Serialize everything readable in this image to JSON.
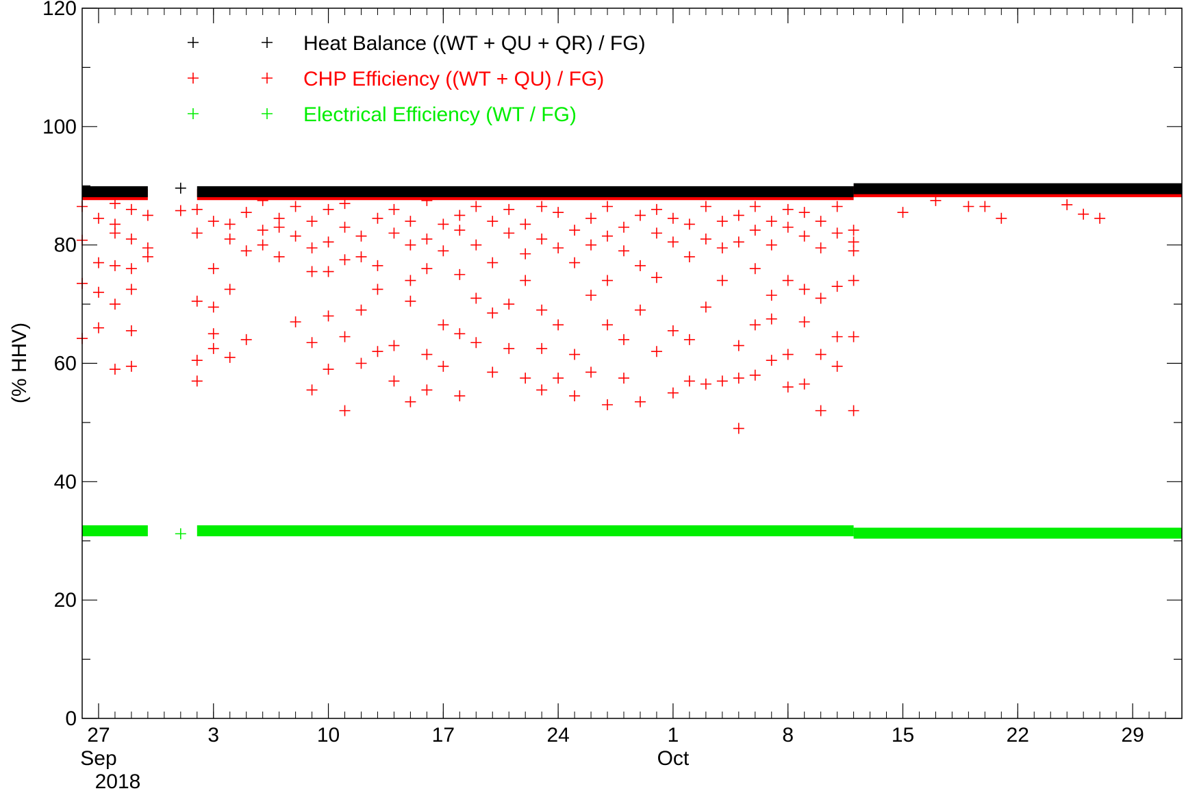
{
  "chart_data": {
    "type": "scatter",
    "ylabel": "(% HHV)",
    "ylim": [
      0,
      120
    ],
    "yticks": [
      0,
      20,
      40,
      60,
      80,
      100,
      120
    ],
    "xlim": [
      "2018-08-26",
      "2018-11-01"
    ],
    "xticks": [
      {
        "date": "2018-08-27",
        "label": "27"
      },
      {
        "date": "2018-09-03",
        "label": "3"
      },
      {
        "date": "2018-09-10",
        "label": "10"
      },
      {
        "date": "2018-09-17",
        "label": "17"
      },
      {
        "date": "2018-09-24",
        "label": "24"
      },
      {
        "date": "2018-10-01",
        "label": "1"
      },
      {
        "date": "2018-10-08",
        "label": "8"
      },
      {
        "date": "2018-10-15",
        "label": "15"
      },
      {
        "date": "2018-10-22",
        "label": "22"
      },
      {
        "date": "2018-10-29",
        "label": "29"
      }
    ],
    "month_labels": [
      {
        "date": "2018-08-27",
        "label": "Sep"
      },
      {
        "date": "2018-10-01",
        "label": "Oct"
      }
    ],
    "year_labels": [
      {
        "date": "2018-08-27",
        "label": "2018"
      }
    ],
    "grid": false,
    "legend_position": "top-left",
    "series": [
      {
        "name": "Heat Balance ((WT + QU + QR) / FG)",
        "color": "#000000",
        "segments": [
          {
            "start": "2018-08-26",
            "end": "2018-08-30",
            "level": 89.0
          },
          {
            "start": "2018-09-01",
            "end": "2018-09-01",
            "level": 89.6
          },
          {
            "start": "2018-09-02",
            "end": "2018-10-12",
            "level": 89.0
          },
          {
            "start": "2018-10-12",
            "end": "2018-11-01",
            "level": 89.5
          }
        ],
        "points": []
      },
      {
        "name": "CHP Efficiency ((WT + QU) / FG)",
        "color": "#ff0000",
        "segments": [
          {
            "start": "2018-08-26",
            "end": "2018-08-30",
            "level": 88.5
          },
          {
            "start": "2018-09-02",
            "end": "2018-10-12",
            "level": 88.5
          },
          {
            "start": "2018-10-12",
            "end": "2018-11-01",
            "level": 89.0
          }
        ],
        "points": [
          [
            "2018-08-26",
            80.8
          ],
          [
            "2018-08-26",
            73.5
          ],
          [
            "2018-08-26",
            64.2
          ],
          [
            "2018-08-27",
            84.5
          ],
          [
            "2018-08-27",
            77.0
          ],
          [
            "2018-08-27",
            72.0
          ],
          [
            "2018-08-27",
            66.0
          ],
          [
            "2018-08-28",
            82.0
          ],
          [
            "2018-08-28",
            70.0
          ],
          [
            "2018-08-28",
            59.0
          ],
          [
            "2018-08-28",
            76.5
          ],
          [
            "2018-08-28",
            83.5
          ],
          [
            "2018-08-29",
            65.5
          ],
          [
            "2018-08-29",
            59.5
          ],
          [
            "2018-08-29",
            76.0
          ],
          [
            "2018-08-29",
            81.0
          ],
          [
            "2018-08-29",
            72.5
          ],
          [
            "2018-08-30",
            78.0
          ],
          [
            "2018-08-30",
            85.0
          ],
          [
            "2018-08-30",
            79.5
          ],
          [
            "2018-08-26",
            86.5
          ],
          [
            "2018-08-28",
            87.0
          ],
          [
            "2018-08-29",
            86.0
          ],
          [
            "2018-09-01",
            85.8
          ],
          [
            "2018-09-02",
            86.0
          ],
          [
            "2018-09-02",
            82.0
          ],
          [
            "2018-09-02",
            70.5
          ],
          [
            "2018-09-02",
            57.0
          ],
          [
            "2018-09-02",
            60.5
          ],
          [
            "2018-09-03",
            84.0
          ],
          [
            "2018-09-03",
            76.0
          ],
          [
            "2018-09-03",
            69.5
          ],
          [
            "2018-09-03",
            65.0
          ],
          [
            "2018-09-03",
            62.5
          ],
          [
            "2018-09-04",
            83.5
          ],
          [
            "2018-09-04",
            81.0
          ],
          [
            "2018-09-04",
            72.5
          ],
          [
            "2018-09-04",
            61.0
          ],
          [
            "2018-09-05",
            79.0
          ],
          [
            "2018-09-05",
            85.5
          ],
          [
            "2018-09-05",
            64.0
          ],
          [
            "2018-09-06",
            82.5
          ],
          [
            "2018-09-06",
            87.5
          ],
          [
            "2018-09-06",
            80.0
          ],
          [
            "2018-09-07",
            84.5
          ],
          [
            "2018-09-07",
            78.0
          ],
          [
            "2018-09-07",
            83.0
          ],
          [
            "2018-09-08",
            86.5
          ],
          [
            "2018-09-08",
            81.5
          ],
          [
            "2018-09-08",
            67.0
          ],
          [
            "2018-09-09",
            79.5
          ],
          [
            "2018-09-09",
            84.0
          ],
          [
            "2018-09-09",
            55.5
          ],
          [
            "2018-09-09",
            63.5
          ],
          [
            "2018-09-09",
            75.5
          ],
          [
            "2018-09-10",
            86.0
          ],
          [
            "2018-09-10",
            80.5
          ],
          [
            "2018-09-10",
            59.0
          ],
          [
            "2018-09-10",
            68.0
          ],
          [
            "2018-09-10",
            75.5
          ],
          [
            "2018-09-11",
            83.0
          ],
          [
            "2018-09-11",
            64.5
          ],
          [
            "2018-09-11",
            52.0
          ],
          [
            "2018-09-11",
            77.5
          ],
          [
            "2018-09-11",
            87.0
          ],
          [
            "2018-09-12",
            81.5
          ],
          [
            "2018-09-12",
            78.0
          ],
          [
            "2018-09-12",
            60.0
          ],
          [
            "2018-09-12",
            69.0
          ],
          [
            "2018-09-13",
            84.5
          ],
          [
            "2018-09-13",
            76.5
          ],
          [
            "2018-09-13",
            72.5
          ],
          [
            "2018-09-13",
            62.0
          ],
          [
            "2018-09-14",
            86.0
          ],
          [
            "2018-09-14",
            82.0
          ],
          [
            "2018-09-14",
            57.0
          ],
          [
            "2018-09-14",
            63.0
          ],
          [
            "2018-09-15",
            80.0
          ],
          [
            "2018-09-15",
            84.0
          ],
          [
            "2018-09-15",
            74.0
          ],
          [
            "2018-09-15",
            53.5
          ],
          [
            "2018-09-15",
            70.5
          ],
          [
            "2018-09-16",
            87.5
          ],
          [
            "2018-09-16",
            81.0
          ],
          [
            "2018-09-16",
            76.0
          ],
          [
            "2018-09-16",
            61.5
          ],
          [
            "2018-09-16",
            55.5
          ],
          [
            "2018-09-17",
            83.5
          ],
          [
            "2018-09-17",
            79.0
          ],
          [
            "2018-09-17",
            66.5
          ],
          [
            "2018-09-17",
            59.5
          ],
          [
            "2018-09-18",
            85.0
          ],
          [
            "2018-09-18",
            82.5
          ],
          [
            "2018-09-18",
            65.0
          ],
          [
            "2018-09-18",
            54.5
          ],
          [
            "2018-09-18",
            75.0
          ],
          [
            "2018-09-19",
            80.0
          ],
          [
            "2018-09-19",
            86.5
          ],
          [
            "2018-09-19",
            71.0
          ],
          [
            "2018-09-19",
            63.5
          ],
          [
            "2018-09-20",
            84.0
          ],
          [
            "2018-09-20",
            77.0
          ],
          [
            "2018-09-20",
            58.5
          ],
          [
            "2018-09-20",
            68.5
          ],
          [
            "2018-09-21",
            82.0
          ],
          [
            "2018-09-21",
            86.0
          ],
          [
            "2018-09-21",
            70.0
          ],
          [
            "2018-09-21",
            62.5
          ],
          [
            "2018-09-22",
            83.5
          ],
          [
            "2018-09-22",
            78.5
          ],
          [
            "2018-09-22",
            57.5
          ],
          [
            "2018-09-22",
            74.0
          ],
          [
            "2018-09-23",
            81.0
          ],
          [
            "2018-09-23",
            86.5
          ],
          [
            "2018-09-23",
            69.0
          ],
          [
            "2018-09-23",
            55.5
          ],
          [
            "2018-09-23",
            62.5
          ],
          [
            "2018-09-24",
            85.5
          ],
          [
            "2018-09-24",
            79.5
          ],
          [
            "2018-09-24",
            66.5
          ],
          [
            "2018-09-24",
            57.5
          ],
          [
            "2018-09-25",
            82.5
          ],
          [
            "2018-09-25",
            77.0
          ],
          [
            "2018-09-25",
            61.5
          ],
          [
            "2018-09-25",
            54.5
          ],
          [
            "2018-09-26",
            84.5
          ],
          [
            "2018-09-26",
            80.0
          ],
          [
            "2018-09-26",
            71.5
          ],
          [
            "2018-09-26",
            58.5
          ],
          [
            "2018-09-27",
            86.5
          ],
          [
            "2018-09-27",
            81.5
          ],
          [
            "2018-09-27",
            74.0
          ],
          [
            "2018-09-27",
            66.5
          ],
          [
            "2018-09-27",
            53.0
          ],
          [
            "2018-09-28",
            83.0
          ],
          [
            "2018-09-28",
            79.0
          ],
          [
            "2018-09-28",
            64.0
          ],
          [
            "2018-09-28",
            57.5
          ],
          [
            "2018-09-29",
            85.0
          ],
          [
            "2018-09-29",
            76.5
          ],
          [
            "2018-09-29",
            69.0
          ],
          [
            "2018-09-29",
            53.5
          ],
          [
            "2018-09-30",
            82.0
          ],
          [
            "2018-09-30",
            86.0
          ],
          [
            "2018-09-30",
            62.0
          ],
          [
            "2018-09-30",
            74.5
          ],
          [
            "2018-10-01",
            80.5
          ],
          [
            "2018-10-01",
            84.5
          ],
          [
            "2018-10-01",
            65.5
          ],
          [
            "2018-10-01",
            55.0
          ],
          [
            "2018-10-02",
            83.5
          ],
          [
            "2018-10-02",
            78.0
          ],
          [
            "2018-10-02",
            64.0
          ],
          [
            "2018-10-02",
            57.0
          ],
          [
            "2018-10-03",
            86.5
          ],
          [
            "2018-10-03",
            81.0
          ],
          [
            "2018-10-03",
            69.5
          ],
          [
            "2018-10-03",
            56.5
          ],
          [
            "2018-10-04",
            84.0
          ],
          [
            "2018-10-04",
            79.5
          ],
          [
            "2018-10-04",
            74.0
          ],
          [
            "2018-10-04",
            57.0
          ],
          [
            "2018-10-05",
            85.0
          ],
          [
            "2018-10-05",
            80.5
          ],
          [
            "2018-10-05",
            63.0
          ],
          [
            "2018-10-05",
            49.0
          ],
          [
            "2018-10-05",
            57.5
          ],
          [
            "2018-10-06",
            82.5
          ],
          [
            "2018-10-06",
            86.5
          ],
          [
            "2018-10-06",
            76.0
          ],
          [
            "2018-10-06",
            66.5
          ],
          [
            "2018-10-06",
            58.0
          ],
          [
            "2018-10-07",
            84.0
          ],
          [
            "2018-10-07",
            80.0
          ],
          [
            "2018-10-07",
            71.5
          ],
          [
            "2018-10-07",
            67.5
          ],
          [
            "2018-10-07",
            60.5
          ],
          [
            "2018-10-08",
            83.0
          ],
          [
            "2018-10-08",
            86.0
          ],
          [
            "2018-10-08",
            74.0
          ],
          [
            "2018-10-08",
            61.5
          ],
          [
            "2018-10-08",
            56.0
          ],
          [
            "2018-10-09",
            81.5
          ],
          [
            "2018-10-09",
            85.5
          ],
          [
            "2018-10-09",
            72.5
          ],
          [
            "2018-10-09",
            67.0
          ],
          [
            "2018-10-09",
            56.5
          ],
          [
            "2018-10-10",
            84.0
          ],
          [
            "2018-10-10",
            79.5
          ],
          [
            "2018-10-10",
            71.0
          ],
          [
            "2018-10-10",
            61.5
          ],
          [
            "2018-10-10",
            52.0
          ],
          [
            "2018-10-11",
            82.0
          ],
          [
            "2018-10-11",
            86.5
          ],
          [
            "2018-10-11",
            73.0
          ],
          [
            "2018-10-11",
            64.5
          ],
          [
            "2018-10-11",
            59.5
          ],
          [
            "2018-10-12",
            80.5
          ],
          [
            "2018-10-12",
            79.0
          ],
          [
            "2018-10-12",
            74.0
          ],
          [
            "2018-10-12",
            64.5
          ],
          [
            "2018-10-12",
            52.0
          ],
          [
            "2018-10-12",
            82.5
          ],
          [
            "2018-10-15",
            85.5
          ],
          [
            "2018-10-17",
            87.5
          ],
          [
            "2018-10-19",
            86.5
          ],
          [
            "2018-10-20",
            86.5
          ],
          [
            "2018-10-21",
            84.5
          ],
          [
            "2018-10-25",
            86.8
          ],
          [
            "2018-10-26",
            85.2
          ],
          [
            "2018-10-27",
            84.5
          ]
        ]
      },
      {
        "name": "Electrical Efficiency (WT / FG)",
        "color": "#00ee00",
        "segments": [
          {
            "start": "2018-08-26",
            "end": "2018-08-30",
            "level": 31.7
          },
          {
            "start": "2018-09-01",
            "end": "2018-09-01",
            "level": 31.2
          },
          {
            "start": "2018-09-02",
            "end": "2018-10-12",
            "level": 31.7
          },
          {
            "start": "2018-10-12",
            "end": "2018-11-01",
            "level": 31.3
          }
        ],
        "points": []
      }
    ]
  }
}
